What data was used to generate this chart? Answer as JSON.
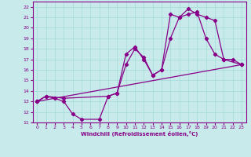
{
  "xlabel": "Windchill (Refroidissement éolien,°C)",
  "bg_color": "#c8eaea",
  "line_color": "#880088",
  "grid_color": "#aadddd",
  "xlim": [
    -0.5,
    23.5
  ],
  "ylim": [
    11,
    22.5
  ],
  "xticks": [
    0,
    1,
    2,
    3,
    4,
    5,
    6,
    7,
    8,
    9,
    10,
    11,
    12,
    13,
    14,
    15,
    16,
    17,
    18,
    19,
    20,
    21,
    22,
    23
  ],
  "yticks": [
    11,
    12,
    13,
    14,
    15,
    16,
    17,
    18,
    19,
    20,
    21,
    22
  ],
  "line1_x": [
    0,
    1,
    2,
    3,
    4,
    5,
    7,
    8,
    9,
    10,
    11,
    12,
    13,
    14,
    15,
    16,
    17,
    18,
    19,
    20,
    21,
    22,
    23
  ],
  "line1_y": [
    13,
    13.5,
    13.3,
    13,
    11.8,
    11.3,
    11.3,
    13.5,
    13.8,
    17.5,
    18.2,
    17.0,
    15.5,
    16.0,
    21.3,
    21.0,
    21.8,
    21.3,
    21.0,
    20.7,
    17.0,
    17.0,
    16.5
  ],
  "line2_x": [
    0,
    1,
    3,
    8,
    9,
    10,
    11,
    12,
    13,
    14,
    15,
    16,
    17,
    18,
    19,
    20,
    21,
    23
  ],
  "line2_y": [
    13,
    13.5,
    13.3,
    13.5,
    13.8,
    16.5,
    18.0,
    17.2,
    15.5,
    16.0,
    19.0,
    21.0,
    21.3,
    21.5,
    19.0,
    17.5,
    17.0,
    16.5
  ],
  "line3_x": [
    0,
    23
  ],
  "line3_y": [
    13.0,
    16.5
  ]
}
